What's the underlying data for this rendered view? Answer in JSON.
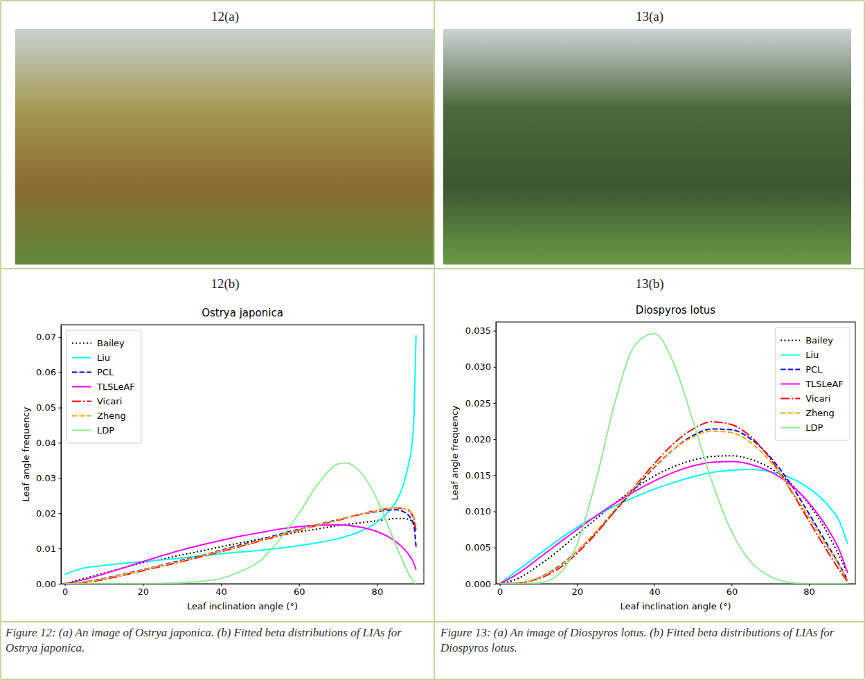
{
  "figure": {
    "photo_labels": [
      "12(a)",
      "13(a)"
    ],
    "chart_labels": [
      "12(b)",
      "13(b)"
    ],
    "captions": [
      "Figure 12: (a) An image of Ostrya japonica. (b) Fitted beta distributions of LIAs for Ostrya japonica.",
      "Figure 13: (a) An image of Diospyros lotus. (b) Fitted beta distributions of LIAs for Diospyros lotus."
    ]
  },
  "chart_data": [
    {
      "type": "line",
      "title": "Ostrya japonica",
      "x_label": "Leaf inclination angle (°)",
      "y_label": "Leaf angle frequency",
      "x": [
        0,
        5,
        10,
        15,
        20,
        25,
        30,
        35,
        40,
        45,
        50,
        55,
        60,
        65,
        70,
        72,
        75,
        80,
        83,
        85,
        87,
        88,
        89,
        89.5,
        90
      ],
      "xlim": [
        -1,
        92
      ],
      "xticks": [
        0,
        20,
        40,
        60,
        80
      ],
      "ylim": [
        0,
        0.0735
      ],
      "yticks": [
        {
          "value": 0,
          "label": "0.00"
        },
        {
          "value": 0.01,
          "label": "0.01"
        },
        {
          "value": 0.02,
          "label": "0.02"
        },
        {
          "value": 0.03,
          "label": "0.03"
        },
        {
          "value": 0.04,
          "label": "0.04"
        },
        {
          "value": 0.05,
          "label": "0.05"
        },
        {
          "value": 0.06,
          "label": "0.06"
        },
        {
          "value": 0.07,
          "label": "0.07"
        }
      ],
      "grid": false,
      "legend": "upper left",
      "series": [
        {
          "name": "Bailey",
          "color": "#000000",
          "line_style": "dotted",
          "values": [
            0,
            0.0015,
            0.003,
            0.0045,
            0.006,
            0.007,
            0.0082,
            0.0093,
            0.0105,
            0.0116,
            0.0127,
            0.0137,
            0.0147,
            0.0156,
            0.0165,
            0.0168,
            0.0172,
            0.0179,
            0.0183,
            0.0185,
            0.0185,
            0.0183,
            0.0178,
            0.0172,
            0.0155
          ]
        },
        {
          "name": "Liu",
          "color": "#00ffff",
          "line_style": "solid",
          "values": [
            0.0027,
            0.0045,
            0.0052,
            0.0058,
            0.0063,
            0.0068,
            0.0073,
            0.0079,
            0.0085,
            0.009,
            0.0095,
            0.0101,
            0.0108,
            0.0117,
            0.0128,
            0.0134,
            0.0145,
            0.0175,
            0.0205,
            0.0235,
            0.029,
            0.0335,
            0.04,
            0.048,
            0.0705
          ]
        },
        {
          "name": "PCL",
          "color": "#0000ff",
          "line_style": "dashed",
          "values": [
            0,
            0.0005,
            0.0015,
            0.0027,
            0.004,
            0.0053,
            0.0067,
            0.008,
            0.0095,
            0.011,
            0.0125,
            0.014,
            0.0155,
            0.0168,
            0.0182,
            0.0187,
            0.0195,
            0.0205,
            0.0209,
            0.021,
            0.0203,
            0.0195,
            0.0178,
            0.0162,
            0.0105
          ]
        },
        {
          "name": "TLSLeAF",
          "color": "#ff00ff",
          "line_style": "solid",
          "values": [
            0,
            0.0012,
            0.0028,
            0.0045,
            0.0063,
            0.008,
            0.0096,
            0.011,
            0.0123,
            0.0135,
            0.0145,
            0.0155,
            0.0162,
            0.0166,
            0.0167,
            0.0166,
            0.0162,
            0.0148,
            0.0133,
            0.0118,
            0.0098,
            0.0085,
            0.0068,
            0.0056,
            0.004
          ]
        },
        {
          "name": "Vicari",
          "color": "#ff0000",
          "line_style": "dashdot",
          "values": [
            0,
            0.0004,
            0.0012,
            0.0024,
            0.0037,
            0.005,
            0.0063,
            0.0077,
            0.0091,
            0.0106,
            0.0121,
            0.0136,
            0.0152,
            0.0166,
            0.018,
            0.0186,
            0.0195,
            0.0208,
            0.0213,
            0.0215,
            0.0213,
            0.021,
            0.0195,
            0.018,
            0.0145
          ]
        },
        {
          "name": "Zheng",
          "color": "#ffa500",
          "line_style": "dashed",
          "values": [
            0,
            0.0005,
            0.0014,
            0.0026,
            0.0039,
            0.0052,
            0.0065,
            0.0079,
            0.0093,
            0.0108,
            0.0123,
            0.0138,
            0.0153,
            0.0167,
            0.0181,
            0.0187,
            0.0195,
            0.0207,
            0.0212,
            0.0214,
            0.0213,
            0.0208,
            0.0198,
            0.0188,
            0.0165
          ]
        },
        {
          "name": "LDP",
          "color": "#90ee90",
          "line_style": "solid",
          "values": [
            0,
            0,
            0,
            0,
            0,
            0.0001,
            0.0003,
            0.0007,
            0.0015,
            0.0035,
            0.0065,
            0.0125,
            0.02,
            0.0285,
            0.034,
            0.0343,
            0.0325,
            0.024,
            0.016,
            0.0105,
            0.0055,
            0.003,
            0.0012,
            0.0005,
            0
          ]
        }
      ]
    },
    {
      "type": "line",
      "title": "Diospyros lotus",
      "x_label": "Leaf inclination angle (°)",
      "y_label": "Leaf angle frequency",
      "x": [
        0,
        5,
        10,
        15,
        20,
        25,
        30,
        35,
        40,
        45,
        50,
        55,
        60,
        65,
        70,
        75,
        80,
        85,
        88,
        90
      ],
      "xlim": [
        -1,
        92
      ],
      "xticks": [
        0,
        20,
        40,
        60,
        80
      ],
      "ylim": [
        0,
        0.0362
      ],
      "yticks": [
        {
          "value": 0,
          "label": "0.000"
        },
        {
          "value": 0.005,
          "label": "0.005"
        },
        {
          "value": 0.01,
          "label": "0.010"
        },
        {
          "value": 0.015,
          "label": "0.015"
        },
        {
          "value": 0.02,
          "label": "0.020"
        },
        {
          "value": 0.025,
          "label": "0.025"
        },
        {
          "value": 0.03,
          "label": "0.030"
        },
        {
          "value": 0.035,
          "label": "0.035"
        }
      ],
      "grid": false,
      "legend": "upper right",
      "series": [
        {
          "name": "Bailey",
          "color": "#000000",
          "line_style": "dotted",
          "values": [
            0,
            0.0008,
            0.0025,
            0.0045,
            0.0068,
            0.009,
            0.0112,
            0.0132,
            0.0149,
            0.0162,
            0.0171,
            0.0176,
            0.0177,
            0.0172,
            0.016,
            0.014,
            0.011,
            0.0068,
            0.0037,
            0.0015
          ]
        },
        {
          "name": "Liu",
          "color": "#00ffff",
          "line_style": "solid",
          "values": [
            0,
            0.002,
            0.004,
            0.006,
            0.0078,
            0.0094,
            0.0108,
            0.012,
            0.0131,
            0.014,
            0.0148,
            0.0154,
            0.0157,
            0.0158,
            0.0155,
            0.0147,
            0.0132,
            0.0108,
            0.0085,
            0.0055
          ]
        },
        {
          "name": "PCL",
          "color": "#0000ff",
          "line_style": "dashed",
          "values": [
            0,
            0.0001,
            0.0008,
            0.0023,
            0.0045,
            0.0072,
            0.0102,
            0.0132,
            0.0161,
            0.0186,
            0.0205,
            0.0214,
            0.0213,
            0.02,
            0.0175,
            0.014,
            0.0097,
            0.0052,
            0.0025,
            0.0005
          ]
        },
        {
          "name": "TLSLeAF",
          "color": "#ff00ff",
          "line_style": "solid",
          "values": [
            0,
            0.0015,
            0.0035,
            0.0055,
            0.0075,
            0.0094,
            0.0112,
            0.0128,
            0.0142,
            0.0154,
            0.0163,
            0.0168,
            0.0169,
            0.0165,
            0.0155,
            0.0138,
            0.0112,
            0.0075,
            0.0045,
            0.0015
          ]
        },
        {
          "name": "Vicari",
          "color": "#ff0000",
          "line_style": "dashdot",
          "values": [
            0,
            0.0001,
            0.0007,
            0.002,
            0.0042,
            0.007,
            0.0102,
            0.0135,
            0.0166,
            0.0194,
            0.0214,
            0.0224,
            0.022,
            0.0203,
            0.0173,
            0.0132,
            0.0087,
            0.0043,
            0.0018,
            0.0003
          ]
        },
        {
          "name": "Zheng",
          "color": "#ffa500",
          "line_style": "dashed",
          "values": [
            0,
            0.0001,
            0.0008,
            0.0022,
            0.0045,
            0.0073,
            0.0104,
            0.0134,
            0.0162,
            0.0186,
            0.0203,
            0.0211,
            0.0209,
            0.0195,
            0.0169,
            0.0133,
            0.0092,
            0.0049,
            0.0024,
            0.0005
          ]
        },
        {
          "name": "LDP",
          "color": "#90ee90",
          "line_style": "solid",
          "values": [
            0,
            0,
            0.0001,
            0.0012,
            0.0055,
            0.0145,
            0.0255,
            0.033,
            0.0346,
            0.0305,
            0.0225,
            0.014,
            0.0072,
            0.003,
            0.001,
            0.0002,
            0,
            0,
            0,
            0
          ]
        }
      ]
    }
  ]
}
